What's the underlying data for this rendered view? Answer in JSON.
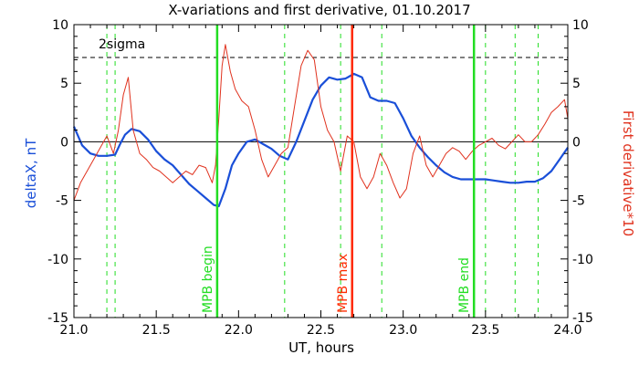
{
  "chart_data": {
    "type": "line",
    "title": "X-variations and first derivative, 01.10.2017",
    "xlabel": "UT, hours",
    "ylabel_left": "deltaX, nT",
    "ylabel_right": "First derivative*10",
    "xlim": [
      21.0,
      24.0
    ],
    "ylim": [
      -15,
      10
    ],
    "x_ticks": [
      "21.0",
      "21.5",
      "22.0",
      "22.5",
      "23.0",
      "23.5",
      "24.0"
    ],
    "y_ticks": [
      "10",
      "5",
      "0",
      "-5",
      "-10",
      "-15"
    ],
    "sigma_label": "2sigma",
    "sigma_level": 7.2,
    "zero_level": 0,
    "colors": {
      "deltaX": "#1a4fd8",
      "derivative": "#e0321e",
      "mpb": "#22dd22",
      "max": "#ff2a00"
    },
    "markers": [
      {
        "label": "MPB begin",
        "x": 21.87,
        "color": "#22dd22"
      },
      {
        "label": "MPB max",
        "x": 22.69,
        "color": "#ff2a00"
      },
      {
        "label": "MPB end",
        "x": 23.43,
        "color": "#22dd22"
      }
    ],
    "dashed_lines_x": [
      21.2,
      21.25,
      22.28,
      22.62,
      22.87,
      23.5,
      23.68,
      23.82
    ],
    "series": [
      {
        "key": "deltaX",
        "x": [
          21.0,
          21.05,
          21.1,
          21.15,
          21.2,
          21.25,
          21.28,
          21.31,
          21.35,
          21.4,
          21.45,
          21.5,
          21.55,
          21.6,
          21.65,
          21.7,
          21.75,
          21.8,
          21.85,
          21.88,
          21.92,
          21.96,
          22.0,
          22.05,
          22.1,
          22.15,
          22.2,
          22.25,
          22.3,
          22.35,
          22.4,
          22.45,
          22.5,
          22.55,
          22.6,
          22.65,
          22.7,
          22.75,
          22.8,
          22.85,
          22.9,
          22.95,
          23.0,
          23.05,
          23.1,
          23.15,
          23.2,
          23.25,
          23.3,
          23.35,
          23.4,
          23.45,
          23.5,
          23.55,
          23.6,
          23.65,
          23.7,
          23.75,
          23.8,
          23.85,
          23.9,
          23.95,
          24.0
        ],
        "y": [
          1.3,
          -0.3,
          -1.0,
          -1.2,
          -1.2,
          -1.1,
          -0.2,
          0.6,
          1.1,
          0.9,
          0.2,
          -0.8,
          -1.5,
          -2.0,
          -2.8,
          -3.6,
          -4.2,
          -4.8,
          -5.4,
          -5.5,
          -4.0,
          -2.0,
          -1.0,
          0.0,
          0.2,
          -0.2,
          -0.6,
          -1.2,
          -1.5,
          0.0,
          1.8,
          3.6,
          4.8,
          5.5,
          5.3,
          5.4,
          5.8,
          5.5,
          3.8,
          3.5,
          3.5,
          3.3,
          2.0,
          0.5,
          -0.5,
          -1.3,
          -2.0,
          -2.6,
          -3.0,
          -3.2,
          -3.2,
          -3.2,
          -3.2,
          -3.3,
          -3.4,
          -3.5,
          -3.5,
          -3.4,
          -3.4,
          -3.1,
          -2.5,
          -1.5,
          -0.5
        ]
      },
      {
        "key": "derivative",
        "x": [
          21.0,
          21.04,
          21.08,
          21.12,
          21.16,
          21.2,
          21.24,
          21.27,
          21.3,
          21.33,
          21.36,
          21.4,
          21.44,
          21.48,
          21.52,
          21.56,
          21.6,
          21.64,
          21.68,
          21.72,
          21.76,
          21.8,
          21.84,
          21.86,
          21.88,
          21.9,
          21.92,
          21.95,
          21.98,
          22.02,
          22.06,
          22.1,
          22.14,
          22.18,
          22.22,
          22.26,
          22.3,
          22.34,
          22.38,
          22.42,
          22.46,
          22.5,
          22.54,
          22.58,
          22.62,
          22.66,
          22.7,
          22.74,
          22.78,
          22.82,
          22.86,
          22.9,
          22.94,
          22.98,
          23.02,
          23.06,
          23.1,
          23.14,
          23.18,
          23.22,
          23.26,
          23.3,
          23.34,
          23.38,
          23.42,
          23.46,
          23.5,
          23.54,
          23.58,
          23.62,
          23.66,
          23.7,
          23.74,
          23.78,
          23.82,
          23.86,
          23.9,
          23.94,
          23.98,
          24.0
        ],
        "y": [
          -5.0,
          -3.5,
          -2.5,
          -1.5,
          -0.5,
          0.5,
          -1.0,
          1.0,
          4.0,
          5.5,
          1.0,
          -1.0,
          -1.5,
          -2.2,
          -2.5,
          -3.0,
          -3.5,
          -3.0,
          -2.5,
          -2.8,
          -2.0,
          -2.2,
          -3.5,
          -2.0,
          2.0,
          6.5,
          8.3,
          6.0,
          4.5,
          3.5,
          3.0,
          1.0,
          -1.5,
          -3.0,
          -2.0,
          -1.0,
          -0.5,
          3.0,
          6.5,
          7.8,
          7.0,
          3.0,
          1.0,
          0.0,
          -2.5,
          0.5,
          0.0,
          -3.0,
          -4.0,
          -3.0,
          -1.0,
          -2.0,
          -3.5,
          -4.8,
          -4.0,
          -1.0,
          0.5,
          -2.0,
          -3.0,
          -2.0,
          -1.0,
          -0.5,
          -0.8,
          -1.5,
          -0.8,
          -0.3,
          0.0,
          0.3,
          -0.3,
          -0.6,
          0.0,
          0.6,
          0.0,
          0.0,
          0.6,
          1.5,
          2.5,
          3.0,
          3.6,
          2.0
        ]
      }
    ]
  }
}
